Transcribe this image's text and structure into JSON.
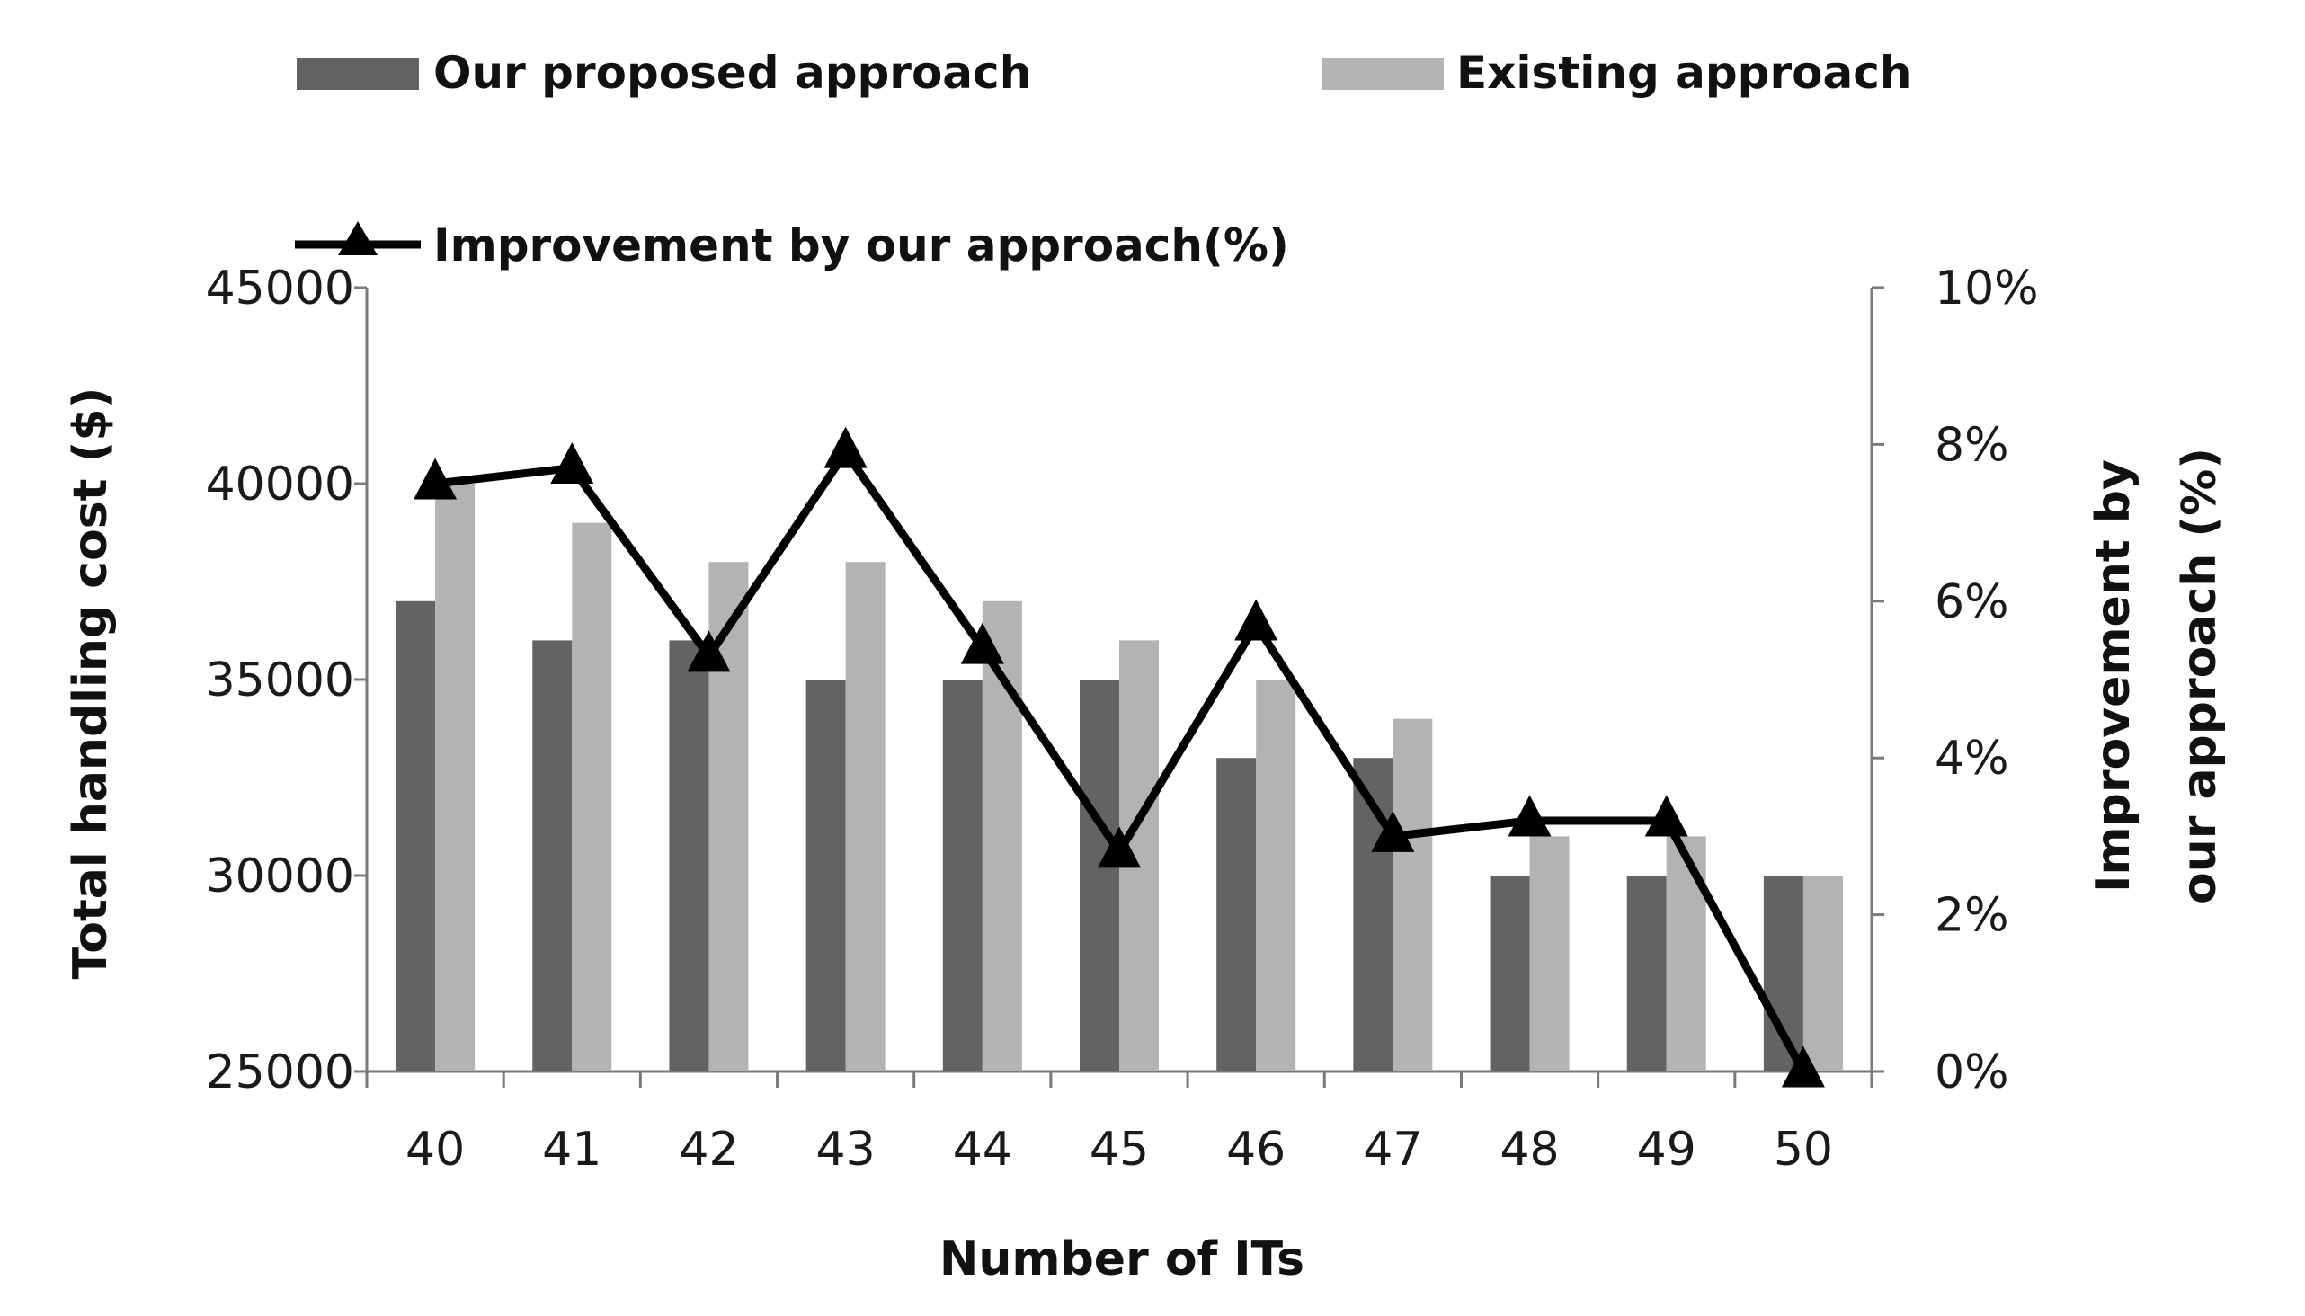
{
  "chart_data": {
    "type": "bar",
    "title": "",
    "categories": [
      "40",
      "41",
      "42",
      "43",
      "44",
      "45",
      "46",
      "47",
      "48",
      "49",
      "50"
    ],
    "series": [
      {
        "name": "Our proposed approach",
        "kind": "bar",
        "axis": "left",
        "color": "#636363",
        "values": [
          37000,
          36000,
          36000,
          35000,
          35000,
          35000,
          33000,
          33000,
          30000,
          30000,
          30000
        ]
      },
      {
        "name": "Existing approach",
        "kind": "bar",
        "axis": "left",
        "color": "#b3b3b3",
        "values": [
          40000,
          39000,
          38000,
          38000,
          37000,
          36000,
          35000,
          34000,
          31000,
          31000,
          30000
        ]
      },
      {
        "name": "Improvement by our approach(%)",
        "kind": "line",
        "axis": "right",
        "color": "#000000",
        "marker": "triangle",
        "values": [
          7.5,
          7.7,
          5.3,
          7.9,
          5.4,
          2.8,
          5.7,
          3.0,
          3.2,
          3.2,
          0.0
        ]
      }
    ],
    "xlabel": "Number of ITs",
    "ylabel": "Total  handling cost ($)",
    "y2label_line1": "Improvement by",
    "y2label_line2": "our approach (%)",
    "ylim": [
      25000,
      45000
    ],
    "yticks": [
      "25000",
      "30000",
      "35000",
      "40000",
      "45000"
    ],
    "y2lim": [
      0,
      10
    ],
    "y2ticks": [
      "0%",
      "2%",
      "4%",
      "6%",
      "8%",
      "10%"
    ],
    "grid": false,
    "legend_position": "top"
  }
}
